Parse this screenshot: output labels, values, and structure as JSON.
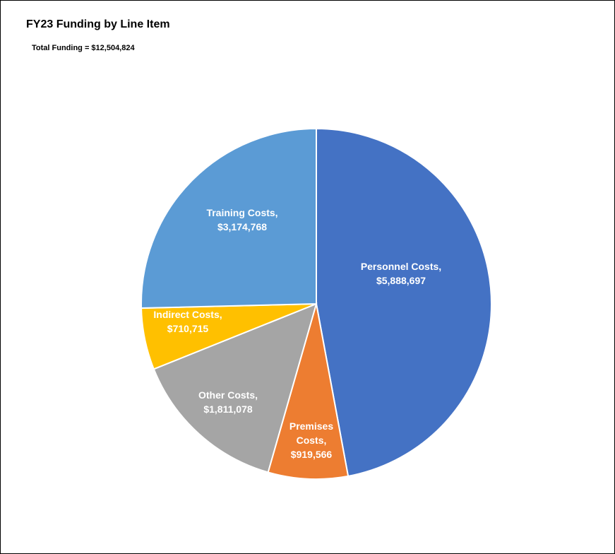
{
  "chart_data": {
    "type": "pie",
    "title": "FY23 Funding by Line Item",
    "subtitle": "Total Funding = $12,504,824",
    "slices": [
      {
        "name": "Personnel Costs",
        "value": 5888697,
        "value_label": "$5,888,697",
        "color": "#4472C4"
      },
      {
        "name": "Premises Costs",
        "value": 919566,
        "value_label": "$919,566",
        "color": "#ED7D31"
      },
      {
        "name": "Other Costs",
        "value": 1811078,
        "value_label": "$1,811,078",
        "color": "#A5A5A5"
      },
      {
        "name": "Indirect Costs",
        "value": 710715,
        "value_label": "$710,715",
        "color": "#FFC000"
      },
      {
        "name": "Training Costs",
        "value": 3174768,
        "value_label": "$3,174,768",
        "color": "#5B9BD5"
      }
    ]
  }
}
